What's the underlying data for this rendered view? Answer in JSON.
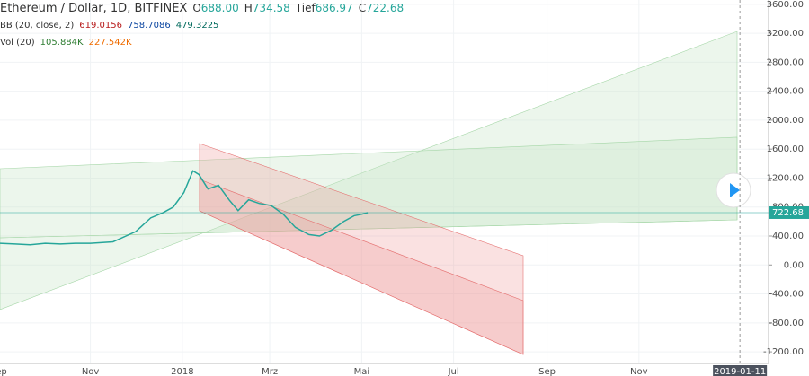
{
  "chart_data": {
    "type": "line",
    "title": "Ethereum / Dollar, 1D, BITFINEX",
    "ohlc": [
      {
        "label": "O",
        "value": "688.00"
      },
      {
        "label": "H",
        "value": "734.58"
      },
      {
        "label": "Tief",
        "value": "686.97"
      },
      {
        "label": "C",
        "value": "722.68"
      }
    ],
    "indicators": [
      {
        "name": "BB (20, close, 2)",
        "values": [
          "619.0156",
          "758.7086",
          "479.3225"
        ]
      },
      {
        "name": "Vol (20)",
        "values": [
          "105.884K",
          "227.542K"
        ]
      }
    ],
    "x": [
      0,
      10,
      20,
      30,
      40,
      50,
      60,
      75,
      90,
      100,
      108,
      115,
      122,
      128,
      132,
      138,
      145,
      152,
      158,
      165,
      172,
      180,
      188,
      196,
      205,
      212,
      220,
      228,
      235,
      240,
      244
    ],
    "series": [
      {
        "name": "Ethereum / Dollar",
        "color": "#26a69a",
        "values": [
          300,
          290,
          280,
          300,
          290,
          300,
          300,
          320,
          460,
          650,
          720,
          800,
          1000,
          1300,
          1250,
          1050,
          1100,
          900,
          750,
          900,
          850,
          820,
          700,
          520,
          420,
          400,
          480,
          600,
          680,
          700,
          722.68
        ]
      }
    ],
    "last_label": "722.68",
    "xlim": [
      0,
      510
    ],
    "xticks": [
      {
        "value": -1,
        "label": "Sep"
      },
      {
        "value": 60,
        "label": "Nov"
      },
      {
        "value": 121,
        "label": "2018"
      },
      {
        "value": 179,
        "label": "Mrz"
      },
      {
        "value": 240,
        "label": "Mai"
      },
      {
        "value": 301,
        "label": "Jul"
      },
      {
        "value": 363,
        "label": "Sep"
      },
      {
        "value": 424,
        "label": "Nov"
      }
    ],
    "cursor_x": {
      "value": 491,
      "label": "2019-01-11"
    },
    "ylim": [
      -1360,
      3660
    ],
    "yticks": [
      {
        "value": 3600,
        "label": "3600.00"
      },
      {
        "value": 3200,
        "label": "3200.00"
      },
      {
        "value": 2800,
        "label": "2800.00"
      },
      {
        "value": 2400,
        "label": "2400.00"
      },
      {
        "value": 2000,
        "label": "2000.00"
      },
      {
        "value": 1600,
        "label": "1600.00"
      },
      {
        "value": 1200,
        "label": "1200.00"
      },
      {
        "value": 800,
        "label": "800.00"
      },
      {
        "value": 400,
        "label": "400.00"
      },
      {
        "value": 0,
        "label": "0.00"
      },
      {
        "value": -400,
        "label": "-400.00"
      },
      {
        "value": -800,
        "label": "-800.00"
      },
      {
        "value": -1200,
        "label": "-1200.00"
      }
    ],
    "grid": true
  }
}
